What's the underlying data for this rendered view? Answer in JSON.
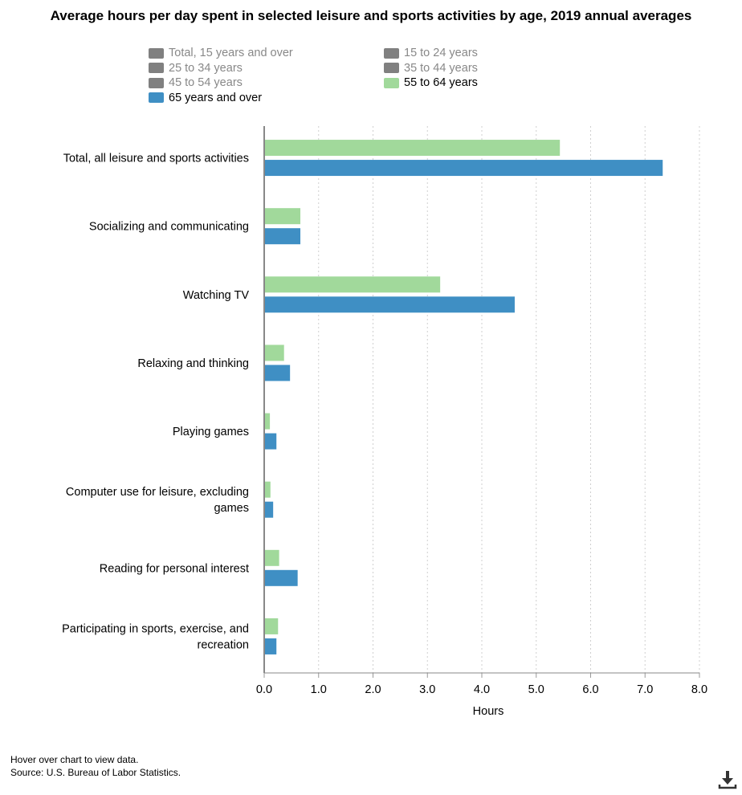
{
  "chart_data": {
    "type": "bar",
    "orientation": "horizontal",
    "title": "Average hours per day spent in selected leisure and sports activities by age, 2019 annual averages",
    "xlabel": "Hours",
    "ylabel": "",
    "xlim": [
      0,
      8
    ],
    "xticks": [
      "0.0",
      "1.0",
      "2.0",
      "3.0",
      "4.0",
      "5.0",
      "6.0",
      "7.0",
      "8.0"
    ],
    "grid": true,
    "legend_position": "top",
    "categories": [
      "Total, all leisure and sports activities",
      "Socializing and communicating",
      "Watching TV",
      "Relaxing and thinking",
      "Playing games",
      "Computer use for leisure, excluding games",
      "Reading for personal interest",
      "Participating in sports, exercise, and recreation"
    ],
    "category_lines": [
      [
        "Total, all leisure and sports activities"
      ],
      [
        "Socializing and communicating"
      ],
      [
        "Watching TV"
      ],
      [
        "Relaxing and thinking"
      ],
      [
        "Playing games"
      ],
      [
        "Computer use for leisure, excluding",
        "games"
      ],
      [
        "Reading for personal interest"
      ],
      [
        "Participating in sports, exercise, and",
        "recreation"
      ]
    ],
    "series": [
      {
        "name": "55 to 64 years",
        "color": "#a1d99b",
        "values": [
          5.42,
          0.65,
          3.22,
          0.35,
          0.09,
          0.1,
          0.26,
          0.24
        ]
      },
      {
        "name": "65 years and over",
        "color": "#3f8fc4",
        "values": [
          7.31,
          0.65,
          4.59,
          0.46,
          0.21,
          0.15,
          0.6,
          0.21
        ]
      }
    ],
    "legend": [
      {
        "name": "Total, 15 years and over",
        "color": "#808080",
        "active": false
      },
      {
        "name": "15 to 24 years",
        "color": "#808080",
        "active": false
      },
      {
        "name": "25 to 34 years",
        "color": "#808080",
        "active": false
      },
      {
        "name": "35 to 44 years",
        "color": "#808080",
        "active": false
      },
      {
        "name": "45 to 54 years",
        "color": "#808080",
        "active": false
      },
      {
        "name": "55 to 64 years",
        "color": "#a1d99b",
        "active": true
      },
      {
        "name": "65 years and over",
        "color": "#3f8fc4",
        "active": true
      }
    ]
  },
  "footer": {
    "hint": "Hover over chart to view data.",
    "source": "Source: U.S. Bureau of Labor Statistics."
  },
  "icons": {
    "download": "download-icon"
  }
}
